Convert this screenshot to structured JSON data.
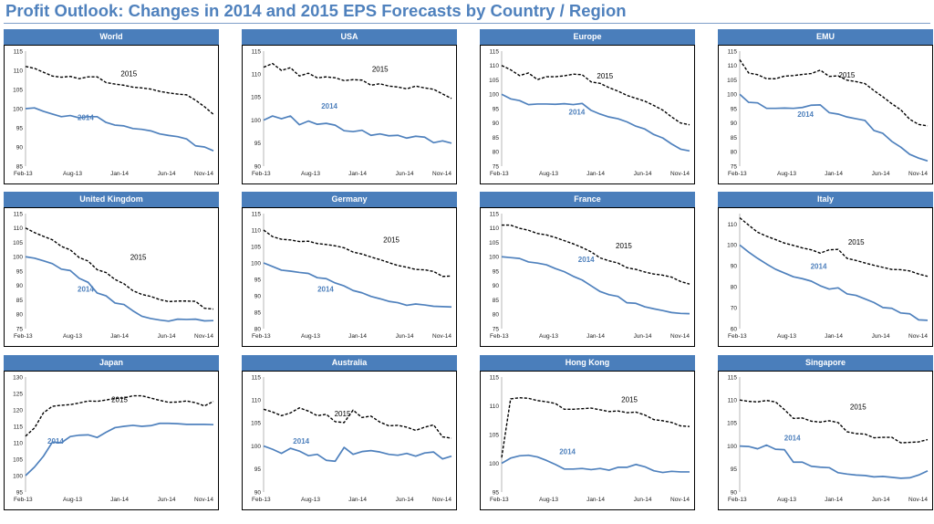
{
  "title": "Profit Outlook: Changes in 2014 and 2015 EPS Forecasts by Country / Region",
  "colors": {
    "title": "#4f81bd",
    "header_bg": "#4a7ebb",
    "line_2014": "#4f81bd",
    "line_2015": "#000000"
  },
  "chart_data": [
    {
      "type": "line",
      "title": "World",
      "x_tick_labels": [
        "Feb-13",
        "Aug-13",
        "Jan-14",
        "Jun-14",
        "Nov-14"
      ],
      "ylim": [
        85,
        115
      ],
      "y_ticks": [
        85,
        90,
        95,
        100,
        105,
        110,
        115
      ],
      "series": [
        {
          "name": "2015",
          "style": "dashed",
          "values": [
            111,
            110.5,
            109.5,
            108.5,
            108.2,
            108.4,
            107.8,
            108.3,
            108.3,
            106.8,
            106.4,
            106.1,
            105.6,
            105.4,
            105.1,
            104.5,
            104.1,
            103.8,
            103.6,
            102.2,
            100.5,
            98.5
          ]
        },
        {
          "name": "2014",
          "style": "solid",
          "values": [
            100,
            100.2,
            99.3,
            98.6,
            97.9,
            98.2,
            97.6,
            97.9,
            97.9,
            96.4,
            95.7,
            95.5,
            94.8,
            94.6,
            94.2,
            93.4,
            93.0,
            92.7,
            92.1,
            90.3,
            90.0,
            89.0
          ]
        }
      ]
    },
    {
      "type": "line",
      "title": "USA",
      "x_tick_labels": [
        "Feb-13",
        "Aug-13",
        "Jan-14",
        "Jun-14",
        "Nov-14"
      ],
      "ylim": [
        90,
        115
      ],
      "y_ticks": [
        90,
        95,
        100,
        105,
        110,
        115
      ],
      "series": [
        {
          "name": "2015",
          "style": "dashed",
          "values": [
            111.5,
            112.3,
            110.8,
            111.4,
            109.6,
            110.2,
            109.2,
            109.4,
            109.2,
            108.6,
            108.8,
            108.7,
            107.6,
            107.9,
            107.4,
            107.2,
            106.8,
            107.4,
            107.0,
            106.7,
            105.7,
            104.7
          ]
        },
        {
          "name": "2014",
          "style": "solid",
          "values": [
            100,
            100.9,
            100.3,
            100.9,
            99.0,
            99.8,
            99.1,
            99.3,
            98.9,
            97.7,
            97.5,
            97.8,
            96.7,
            97.0,
            96.6,
            96.7,
            96.1,
            96.5,
            96.3,
            95.1,
            95.5,
            95.0
          ]
        }
      ]
    },
    {
      "type": "line",
      "title": "Europe",
      "x_tick_labels": [
        "Feb-13",
        "Aug-13",
        "Jan-14",
        "Jun-14",
        "Nov-14"
      ],
      "ylim": [
        75,
        115
      ],
      "y_ticks": [
        75,
        80,
        85,
        90,
        95,
        100,
        105,
        110,
        115
      ],
      "series": [
        {
          "name": "2015",
          "style": "dashed",
          "values": [
            110,
            108.5,
            106.5,
            107.4,
            105.1,
            106.1,
            106.1,
            106.4,
            107.0,
            106.8,
            104.3,
            103.8,
            102.3,
            101.1,
            99.6,
            98.6,
            97.6,
            96.1,
            94.5,
            92.1,
            90.0,
            89.4
          ]
        },
        {
          "name": "2014",
          "style": "solid",
          "values": [
            100,
            98.4,
            97.8,
            96.4,
            96.6,
            96.6,
            96.5,
            96.7,
            96.4,
            96.8,
            94.4,
            93.1,
            92.1,
            91.5,
            90.4,
            88.9,
            87.9,
            86.0,
            84.8,
            82.7,
            80.9,
            80.3
          ]
        }
      ]
    },
    {
      "type": "line",
      "title": "EMU",
      "x_tick_labels": [
        "Feb-13",
        "Aug-13",
        "Jan-14",
        "Jun-14",
        "Nov-14"
      ],
      "ylim": [
        75,
        115
      ],
      "y_ticks": [
        75,
        80,
        85,
        90,
        95,
        100,
        105,
        110,
        115
      ],
      "series": [
        {
          "name": "2015",
          "style": "dashed",
          "values": [
            112,
            107.4,
            106.8,
            105.4,
            105.4,
            106.3,
            106.5,
            106.9,
            107.2,
            108.4,
            106.2,
            106.4,
            104.9,
            104.4,
            103.7,
            101.3,
            99.1,
            96.7,
            94.6,
            91.3,
            89.5,
            89.0
          ]
        },
        {
          "name": "2014",
          "style": "solid",
          "values": [
            100,
            97.2,
            97.0,
            95.1,
            95.1,
            95.2,
            95.1,
            95.4,
            96.2,
            96.3,
            93.6,
            93.1,
            92.1,
            91.5,
            90.9,
            87.4,
            86.4,
            83.6,
            81.6,
            79.1,
            77.8,
            76.8
          ]
        }
      ]
    },
    {
      "type": "line",
      "title": "United Kingdom",
      "x_tick_labels": [
        "Feb-13",
        "Aug-13",
        "Jan-14",
        "Jun-14",
        "Nov-14"
      ],
      "ylim": [
        75,
        115
      ],
      "y_ticks": [
        75,
        80,
        85,
        90,
        95,
        100,
        105,
        110,
        115
      ],
      "series": [
        {
          "name": "2015",
          "style": "dashed",
          "values": [
            110,
            108.4,
            107.1,
            105.9,
            103.6,
            102.4,
            99.7,
            98.5,
            95.5,
            94.5,
            92.1,
            90.6,
            88.2,
            86.9,
            86.2,
            85.1,
            84.4,
            84.6,
            84.6,
            84.5,
            82.1,
            81.8
          ]
        },
        {
          "name": "2014",
          "style": "solid",
          "values": [
            100,
            99.5,
            98.6,
            97.6,
            95.7,
            95.2,
            92.5,
            91.1,
            87.4,
            86.4,
            83.9,
            83.4,
            81.2,
            79.3,
            78.5,
            78.0,
            77.6,
            78.3,
            78.2,
            78.3,
            77.7,
            77.8
          ]
        }
      ]
    },
    {
      "type": "line",
      "title": "Germany",
      "x_tick_labels": [
        "Feb-13",
        "Aug-13",
        "Jan-14",
        "Jun-14",
        "Nov-14"
      ],
      "ylim": [
        80,
        115
      ],
      "y_ticks": [
        80,
        85,
        90,
        95,
        100,
        105,
        110,
        115
      ],
      "series": [
        {
          "name": "2015",
          "style": "dashed",
          "values": [
            110,
            108.0,
            107.2,
            107.0,
            106.5,
            106.6,
            105.9,
            105.6,
            105.2,
            104.6,
            103.3,
            102.7,
            101.8,
            101.0,
            100.1,
            99.2,
            98.7,
            98.0,
            97.9,
            97.4,
            95.9,
            96.0
          ]
        },
        {
          "name": "2014",
          "style": "solid",
          "values": [
            100,
            98.9,
            97.8,
            97.5,
            97.1,
            96.8,
            95.5,
            95.2,
            93.9,
            93.0,
            91.6,
            90.9,
            89.8,
            89.1,
            88.3,
            87.9,
            87.1,
            87.5,
            87.2,
            86.8,
            86.7,
            86.6
          ]
        }
      ]
    },
    {
      "type": "line",
      "title": "France",
      "x_tick_labels": [
        "Feb-13",
        "Aug-13",
        "Jan-14",
        "Jun-14",
        "Nov-14"
      ],
      "ylim": [
        75,
        115
      ],
      "y_ticks": [
        75,
        80,
        85,
        90,
        95,
        100,
        105,
        110,
        115
      ],
      "series": [
        {
          "name": "2015",
          "style": "dashed",
          "values": [
            111,
            111.0,
            109.9,
            109.2,
            108.1,
            107.6,
            106.7,
            105.6,
            104.5,
            103.2,
            101.7,
            99.6,
            98.6,
            97.8,
            96.2,
            95.6,
            94.7,
            94.0,
            93.6,
            92.9,
            91.4,
            90.5
          ]
        },
        {
          "name": "2014",
          "style": "solid",
          "values": [
            100,
            99.7,
            99.4,
            98.2,
            97.8,
            97.2,
            95.9,
            94.8,
            93.2,
            91.9,
            89.9,
            87.9,
            86.8,
            86.2,
            84.0,
            83.8,
            82.6,
            81.9,
            81.3,
            80.6,
            80.3,
            80.2
          ]
        }
      ]
    },
    {
      "type": "line",
      "title": "Italy",
      "x_tick_labels": [
        "Feb-13",
        "Aug-13",
        "Jan-14",
        "Jun-14",
        "Nov-14"
      ],
      "ylim": [
        60,
        115
      ],
      "y_ticks": [
        60,
        70,
        80,
        90,
        100,
        110
      ],
      "series": [
        {
          "name": "2015",
          "style": "dashed",
          "values": [
            113,
            109.5,
            106.1,
            104.2,
            102.6,
            100.9,
            99.8,
            98.6,
            97.7,
            96.1,
            97.7,
            97.9,
            93.6,
            92.6,
            91.4,
            90.3,
            89.3,
            88.3,
            88.2,
            87.6,
            86.1,
            85.0
          ]
        },
        {
          "name": "2014",
          "style": "solid",
          "values": [
            100,
            96.6,
            93.6,
            90.9,
            88.4,
            86.6,
            84.8,
            83.9,
            82.7,
            80.5,
            78.9,
            79.5,
            76.6,
            75.9,
            74.2,
            72.5,
            70.1,
            69.7,
            67.5,
            67.1,
            64.2,
            64.0
          ]
        }
      ]
    },
    {
      "type": "line",
      "title": "Japan",
      "x_tick_labels": [
        "Feb-13",
        "Aug-13",
        "Jan-14",
        "Jun-14",
        "Nov-14"
      ],
      "ylim": [
        95,
        130
      ],
      "y_ticks": [
        95,
        100,
        105,
        110,
        115,
        120,
        125,
        130
      ],
      "series": [
        {
          "name": "2015",
          "style": "dashed",
          "values": [
            112,
            114.5,
            119.1,
            121.1,
            121.4,
            121.6,
            122.1,
            122.7,
            122.6,
            123.0,
            123.5,
            123.6,
            124.3,
            124.3,
            123.6,
            122.9,
            122.3,
            122.4,
            122.7,
            122.2,
            121.2,
            122.6
          ]
        },
        {
          "name": "2014",
          "style": "solid",
          "values": [
            100,
            102.6,
            105.9,
            110.2,
            110.0,
            111.9,
            112.3,
            112.4,
            111.6,
            113.2,
            114.6,
            115.0,
            115.3,
            115.0,
            115.2,
            115.9,
            115.9,
            115.8,
            115.6,
            115.6,
            115.6,
            115.5
          ]
        }
      ]
    },
    {
      "type": "line",
      "title": "Australia",
      "x_tick_labels": [
        "Feb-13",
        "Aug-13",
        "Jan-14",
        "Jun-14",
        "Nov-14"
      ],
      "ylim": [
        90,
        115
      ],
      "y_ticks": [
        90,
        95,
        100,
        105,
        110,
        115
      ],
      "series": [
        {
          "name": "2015",
          "style": "dashed",
          "values": [
            108,
            107.4,
            106.6,
            107.2,
            108.3,
            107.6,
            106.6,
            106.9,
            105.3,
            105.1,
            107.8,
            106.2,
            106.5,
            105.2,
            104.4,
            104.5,
            104.1,
            103.4,
            104.1,
            104.6,
            102.0,
            101.7
          ]
        },
        {
          "name": "2014",
          "style": "solid",
          "values": [
            100,
            99.3,
            98.4,
            99.5,
            98.9,
            97.9,
            98.2,
            96.9,
            96.7,
            99.7,
            98.2,
            98.8,
            99.0,
            98.7,
            98.2,
            98.0,
            98.4,
            97.8,
            98.5,
            98.7,
            97.2,
            97.8
          ]
        }
      ]
    },
    {
      "type": "line",
      "title": "Hong Kong",
      "x_tick_labels": [
        "Feb-13",
        "Aug-13",
        "Jan-14",
        "Jun-14",
        "Nov-14"
      ],
      "ylim": [
        95,
        115
      ],
      "y_ticks": [
        95,
        100,
        105,
        110,
        115
      ],
      "series": [
        {
          "name": "2015",
          "style": "dashed",
          "values": [
            101,
            111.2,
            111.4,
            111.3,
            110.9,
            110.7,
            110.4,
            109.4,
            109.4,
            109.5,
            109.6,
            109.3,
            109.0,
            109.1,
            108.8,
            108.9,
            108.4,
            107.6,
            107.4,
            107.1,
            106.5,
            106.4
          ]
        },
        {
          "name": "2014",
          "style": "solid",
          "values": [
            100,
            100.9,
            101.3,
            101.4,
            101.1,
            100.5,
            99.8,
            99.0,
            99.0,
            99.1,
            98.9,
            99.1,
            98.8,
            99.3,
            99.3,
            99.8,
            99.4,
            98.7,
            98.4,
            98.6,
            98.5,
            98.5
          ]
        }
      ]
    },
    {
      "type": "line",
      "title": "Singapore",
      "x_tick_labels": [
        "Feb-13",
        "Aug-13",
        "Jan-14",
        "Jun-14",
        "Nov-14"
      ],
      "ylim": [
        90,
        115
      ],
      "y_ticks": [
        90,
        95,
        100,
        105,
        110,
        115
      ],
      "series": [
        {
          "name": "2015",
          "style": "dashed",
          "values": [
            110,
            109.7,
            109.6,
            109.9,
            109.6,
            107.9,
            106.0,
            106.1,
            105.4,
            105.2,
            105.5,
            105.1,
            103.1,
            102.7,
            102.6,
            101.8,
            101.9,
            101.9,
            100.7,
            100.8,
            100.9,
            101.4
          ]
        },
        {
          "name": "2014",
          "style": "solid",
          "values": [
            100,
            99.9,
            99.4,
            100.2,
            99.3,
            99.2,
            96.5,
            96.5,
            95.6,
            95.4,
            95.3,
            94.2,
            93.9,
            93.7,
            93.6,
            93.3,
            93.4,
            93.2,
            93.0,
            93.1,
            93.7,
            94.6
          ]
        }
      ]
    }
  ]
}
